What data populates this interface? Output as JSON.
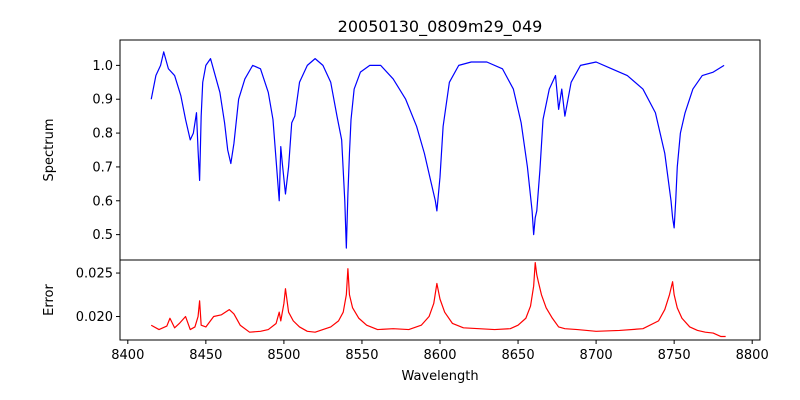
{
  "chart_data": {
    "type": "line",
    "title": "20050130_0809m29_049",
    "xlabel": "Wavelength",
    "xlim": [
      8395,
      8805
    ],
    "xticks": [
      8400,
      8450,
      8500,
      8550,
      8600,
      8650,
      8700,
      8750,
      8800
    ],
    "panels": [
      {
        "name": "spectrum",
        "ylabel": "Spectrum",
        "ylim": [
          0.425,
          1.075
        ],
        "yticks": [
          0.5,
          0.6,
          0.7,
          0.8,
          0.9,
          1.0
        ],
        "series": [
          {
            "color": "#0000ff",
            "x": [
              8415,
              8418,
              8421,
              8423,
              8426,
              8430,
              8434,
              8437,
              8440,
              8442,
              8444,
              8445,
              8446,
              8447,
              8448,
              8450,
              8453,
              8456,
              8459,
              8462,
              8464,
              8466,
              8468,
              8471,
              8475,
              8480,
              8485,
              8490,
              8493,
              8495,
              8497,
              8498,
              8499,
              8501,
              8503,
              8505,
              8507,
              8510,
              8515,
              8520,
              8525,
              8530,
              8534,
              8537,
              8539,
              8540,
              8541,
              8542,
              8543,
              8545,
              8549,
              8555,
              8562,
              8570,
              8578,
              8585,
              8590,
              8594,
              8597,
              8598,
              8600,
              8602,
              8606,
              8612,
              8620,
              8630,
              8640,
              8647,
              8652,
              8656,
              8659,
              8660,
              8661,
              8662,
              8664,
              8666,
              8670,
              8674,
              8676,
              8678,
              8680,
              8684,
              8690,
              8700,
              8710,
              8720,
              8730,
              8738,
              8744,
              8748,
              8749,
              8750,
              8751,
              8752,
              8754,
              8757,
              8762,
              8768,
              8775,
              8782
            ],
            "y": [
              0.9,
              0.97,
              1.0,
              1.04,
              0.99,
              0.97,
              0.91,
              0.84,
              0.78,
              0.8,
              0.86,
              0.75,
              0.66,
              0.85,
              0.95,
              1.0,
              1.02,
              0.97,
              0.92,
              0.83,
              0.75,
              0.71,
              0.77,
              0.9,
              0.96,
              1.0,
              0.99,
              0.92,
              0.84,
              0.72,
              0.6,
              0.76,
              0.71,
              0.62,
              0.7,
              0.83,
              0.85,
              0.95,
              1.0,
              1.02,
              1.0,
              0.95,
              0.85,
              0.78,
              0.6,
              0.46,
              0.62,
              0.74,
              0.84,
              0.93,
              0.98,
              1.0,
              1.0,
              0.96,
              0.9,
              0.82,
              0.74,
              0.66,
              0.6,
              0.57,
              0.67,
              0.82,
              0.95,
              1.0,
              1.01,
              1.01,
              0.99,
              0.93,
              0.83,
              0.7,
              0.57,
              0.5,
              0.55,
              0.57,
              0.69,
              0.84,
              0.93,
              0.97,
              0.87,
              0.93,
              0.85,
              0.95,
              1.0,
              1.01,
              0.99,
              0.97,
              0.93,
              0.86,
              0.74,
              0.6,
              0.55,
              0.52,
              0.6,
              0.7,
              0.8,
              0.86,
              0.93,
              0.97,
              0.98,
              1.0
            ]
          }
        ]
      },
      {
        "name": "error",
        "ylabel": "Error",
        "ylim": [
          0.0173,
          0.0265
        ],
        "yticks": [
          0.02,
          0.025
        ],
        "series": [
          {
            "color": "#ff0000",
            "x": [
              8415,
              8420,
              8425,
              8427,
              8430,
              8433,
              8437,
              8440,
              8443,
              8445,
              8446,
              8447,
              8450,
              8455,
              8460,
              8465,
              8468,
              8472,
              8478,
              8485,
              8490,
              8495,
              8497,
              8498,
              8500,
              8501,
              8503,
              8506,
              8510,
              8515,
              8520,
              8525,
              8530,
              8535,
              8538,
              8540,
              8541,
              8542,
              8544,
              8548,
              8553,
              8560,
              8570,
              8580,
              8588,
              8593,
              8596,
              8598,
              8600,
              8603,
              8608,
              8615,
              8625,
              8635,
              8645,
              8650,
              8655,
              8658,
              8660,
              8661,
              8662,
              8663,
              8665,
              8668,
              8672,
              8676,
              8680,
              8688,
              8700,
              8715,
              8730,
              8740,
              8744,
              8747,
              8749,
              8750,
              8752,
              8755,
              8760,
              8765,
              8770,
              8775,
              8780,
              8783
            ],
            "y": [
              0.019,
              0.0185,
              0.0189,
              0.0198,
              0.0187,
              0.0192,
              0.02,
              0.0185,
              0.0188,
              0.02,
              0.0218,
              0.019,
              0.0188,
              0.02,
              0.0202,
              0.0208,
              0.0203,
              0.019,
              0.0182,
              0.0183,
              0.0185,
              0.0192,
              0.0205,
              0.0195,
              0.0215,
              0.0232,
              0.0205,
              0.0195,
              0.0188,
              0.0183,
              0.0182,
              0.0185,
              0.0188,
              0.0195,
              0.0205,
              0.0225,
              0.0255,
              0.0225,
              0.021,
              0.0198,
              0.019,
              0.0185,
              0.0186,
              0.0185,
              0.019,
              0.02,
              0.0215,
              0.0238,
              0.022,
              0.0205,
              0.0192,
              0.0187,
              0.0186,
              0.0185,
              0.0186,
              0.019,
              0.0198,
              0.0212,
              0.0235,
              0.0262,
              0.0248,
              0.024,
              0.0225,
              0.021,
              0.0198,
              0.0188,
              0.0186,
              0.0185,
              0.0183,
              0.0184,
              0.0186,
              0.0195,
              0.0208,
              0.0225,
              0.024,
              0.0225,
              0.021,
              0.0198,
              0.0188,
              0.0184,
              0.0182,
              0.0181,
              0.0177,
              0.0177
            ]
          }
        ]
      }
    ]
  }
}
